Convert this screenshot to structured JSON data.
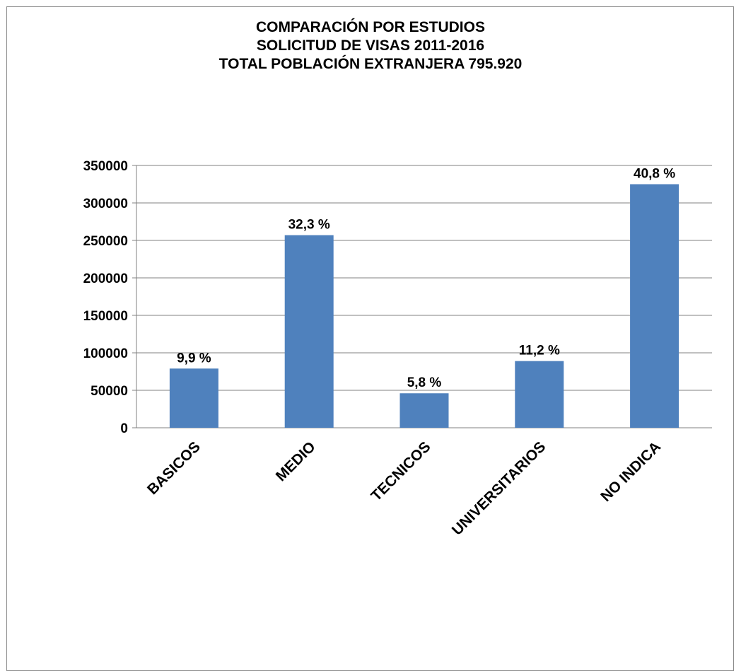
{
  "chart_data": {
    "type": "bar",
    "title": [
      "COMPARACIÓN POR ESTUDIOS",
      "SOLICITUD DE VISAS 2011-2016",
      "TOTAL POBLACIÓN EXTRANJERA 795.920"
    ],
    "categories": [
      "BASICOS",
      "MEDIO",
      "TECNICOS",
      "UNIVERSITARIOS",
      "NO INDICA"
    ],
    "values": [
      79000,
      257000,
      46000,
      89000,
      325000
    ],
    "data_labels": [
      "9,9 %",
      "32,3 %",
      "5,8 %",
      "11,2 %",
      "40,8 %"
    ],
    "y_ticks": [
      "0",
      "50000",
      "100000",
      "150000",
      "200000",
      "250000",
      "300000",
      "350000"
    ],
    "ylim": [
      0,
      350000
    ],
    "grid": true,
    "bar_color": "#4F81BD",
    "gridline_color": "#808080"
  }
}
